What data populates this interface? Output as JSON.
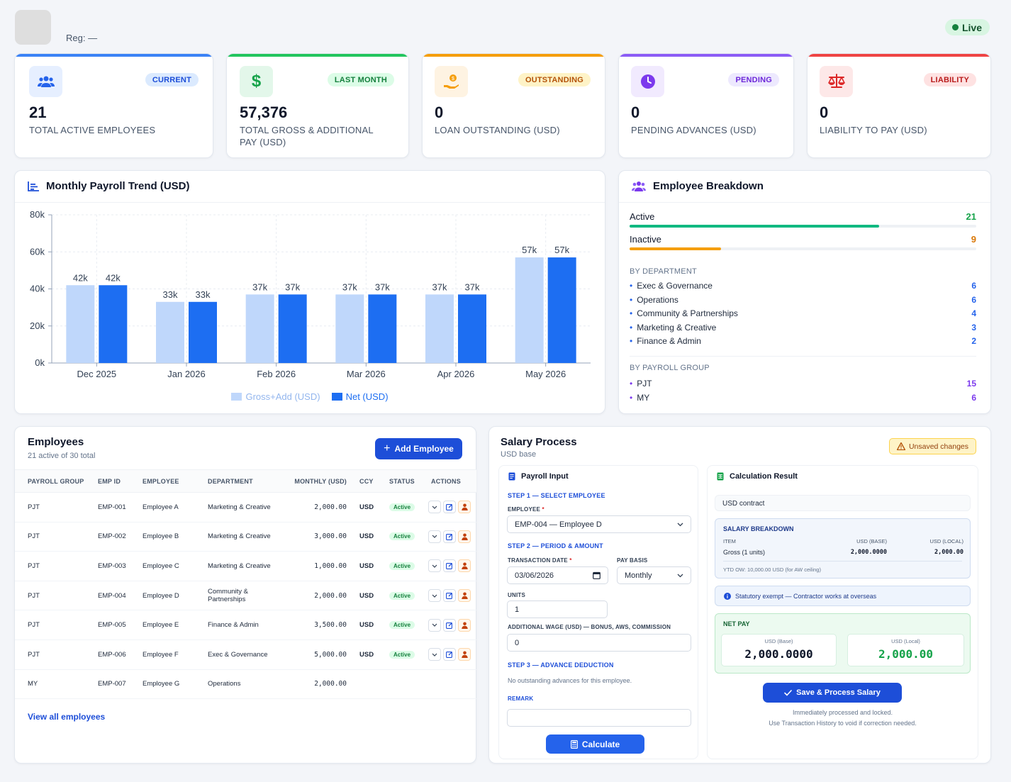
{
  "header": {
    "reg_label": "Reg: —",
    "live_label": "Live"
  },
  "kpis": [
    {
      "badge": "CURRENT",
      "value": "21",
      "label": "TOTAL ACTIVE EMPLOYEES",
      "icon": "users-icon",
      "accent": "#3b82f6"
    },
    {
      "badge": "LAST MONTH",
      "value": "57,376",
      "label": "TOTAL GROSS & ADDITIONAL PAY (USD)",
      "icon": "dollar-icon",
      "accent": "#22c55e"
    },
    {
      "badge": "OUTSTANDING",
      "value": "0",
      "label": "LOAN OUTSTANDING (USD)",
      "icon": "hand-coin-icon",
      "accent": "#f59e0b"
    },
    {
      "badge": "PENDING",
      "value": "0",
      "label": "PENDING ADVANCES (USD)",
      "icon": "clock-icon",
      "accent": "#8b5cf6"
    },
    {
      "badge": "LIABILITY",
      "value": "0",
      "label": "LIABILITY TO PAY (USD)",
      "icon": "scale-icon",
      "accent": "#ef4444"
    }
  ],
  "trend": {
    "title": "Monthly Payroll Trend (USD)",
    "chart_data": {
      "type": "bar",
      "title": "Monthly Payroll Trend (USD)",
      "categories": [
        "Dec 2025",
        "Jan 2026",
        "Feb 2026",
        "Mar 2026",
        "Apr 2026",
        "May 2026"
      ],
      "series": [
        {
          "name": "Gross+Add (USD)",
          "color": "#bfd7fb",
          "values": [
            42,
            33,
            37,
            37,
            37,
            57
          ],
          "labels": [
            "42k",
            "33k",
            "37k",
            "37k",
            "37k",
            "57k"
          ]
        },
        {
          "name": "Net (USD)",
          "color": "#1d6ef2",
          "values": [
            42,
            33,
            37,
            37,
            37,
            57
          ],
          "labels": [
            "42k",
            "33k",
            "37k",
            "37k",
            "37k",
            "57k"
          ]
        }
      ],
      "y_ticks": [
        "0k",
        "20k",
        "40k",
        "60k",
        "80k"
      ],
      "ylim": [
        0,
        80
      ],
      "grid": true,
      "legend": "bottom"
    }
  },
  "breakdown": {
    "title": "Employee Breakdown",
    "status": [
      {
        "label": "Active",
        "count": "21",
        "value": 21,
        "total": 30,
        "color": "#10b981",
        "count_color": "#16a34a"
      },
      {
        "label": "Inactive",
        "count": "9",
        "value": 9,
        "total": 30,
        "color": "#f59e0b",
        "count_color": "#d97706"
      }
    ],
    "dept_heading": "BY DEPARTMENT",
    "departments": [
      {
        "name": "Exec & Governance",
        "count": "6"
      },
      {
        "name": "Operations",
        "count": "6"
      },
      {
        "name": "Community & Partnerships",
        "count": "4"
      },
      {
        "name": "Marketing & Creative",
        "count": "3"
      },
      {
        "name": "Finance & Admin",
        "count": "2"
      }
    ],
    "group_heading": "BY PAYROLL GROUP",
    "groups": [
      {
        "name": "PJT",
        "count": "15"
      },
      {
        "name": "MY",
        "count": "6"
      }
    ]
  },
  "employees": {
    "title": "Employees",
    "subtitle": "21 active of 30 total",
    "add_button": "Add Employee",
    "columns": [
      "PAYROLL GROUP",
      "EMP ID",
      "EMPLOYEE",
      "DEPARTMENT",
      "MONTHLY (USD)",
      "CCY",
      "STATUS",
      "ACTIONS"
    ],
    "rows": [
      {
        "group": "PJT",
        "id": "EMP-001",
        "name": "Employee A",
        "dept": "Marketing & Creative",
        "monthly": "2,000.00",
        "ccy": "USD",
        "status": "Active"
      },
      {
        "group": "PJT",
        "id": "EMP-002",
        "name": "Employee B",
        "dept": "Marketing & Creative",
        "monthly": "3,000.00",
        "ccy": "USD",
        "status": "Active"
      },
      {
        "group": "PJT",
        "id": "EMP-003",
        "name": "Employee C",
        "dept": "Marketing & Creative",
        "monthly": "1,000.00",
        "ccy": "USD",
        "status": "Active"
      },
      {
        "group": "PJT",
        "id": "EMP-004",
        "name": "Employee D",
        "dept": "Community & Partnerships",
        "monthly": "2,000.00",
        "ccy": "USD",
        "status": "Active"
      },
      {
        "group": "PJT",
        "id": "EMP-005",
        "name": "Employee E",
        "dept": "Finance & Admin",
        "monthly": "3,500.00",
        "ccy": "USD",
        "status": "Active"
      },
      {
        "group": "PJT",
        "id": "EMP-006",
        "name": "Employee F",
        "dept": "Exec & Governance",
        "monthly": "5,000.00",
        "ccy": "USD",
        "status": "Active"
      },
      {
        "group": "MY",
        "id": "EMP-007",
        "name": "Employee G",
        "dept": "Operations",
        "monthly": "2,000.00",
        "ccy": "",
        "status": ""
      }
    ],
    "view_all": "View all employees"
  },
  "salary": {
    "title": "Salary Process",
    "subtitle": "USD base",
    "unsaved": "Unsaved changes",
    "input": {
      "title": "Payroll Input",
      "step1": "STEP 1 — SELECT EMPLOYEE",
      "employee_label": "EMPLOYEE",
      "employee_value": "EMP-004 — Employee D",
      "step2": "STEP 2 — PERIOD & AMOUNT",
      "date_label": "TRANSACTION DATE",
      "date_value": "03/06/2026",
      "basis_label": "PAY BASIS",
      "basis_value": "Monthly",
      "units_label": "UNITS",
      "units_value": "1",
      "addwage_label": "ADDITIONAL WAGE (USD) — BONUS, AWS, COMMISSION",
      "addwage_value": "0",
      "step3": "STEP 3 — ADVANCE DEDUCTION",
      "advance_note": "No outstanding advances for this employee.",
      "remark_label": "REMARK",
      "remark_value": "",
      "calculate": "Calculate"
    },
    "result": {
      "title": "Calculation Result",
      "contract": "USD contract",
      "breakdown_title": "SALARY BREAKDOWN",
      "col_item": "ITEM",
      "col_base": "USD (BASE)",
      "col_local": "USD (LOCAL)",
      "item_name": "Gross (1 units)",
      "item_base": "2,000.0000",
      "item_local": "2,000.00",
      "ytd": "YTD OW: 10,000.00 USD (for AW ceiling)",
      "statutory": "Statutory exempt — Contractor works at overseas",
      "net_title": "NET PAY",
      "net_base_label": "USD (Base)",
      "net_base": "2,000.0000",
      "net_local_label": "USD (Local)",
      "net_local": "2,000.00",
      "save": "Save & Process Salary",
      "foot1": "Immediately processed and locked.",
      "foot2": "Use Transaction History to void if correction needed."
    }
  }
}
